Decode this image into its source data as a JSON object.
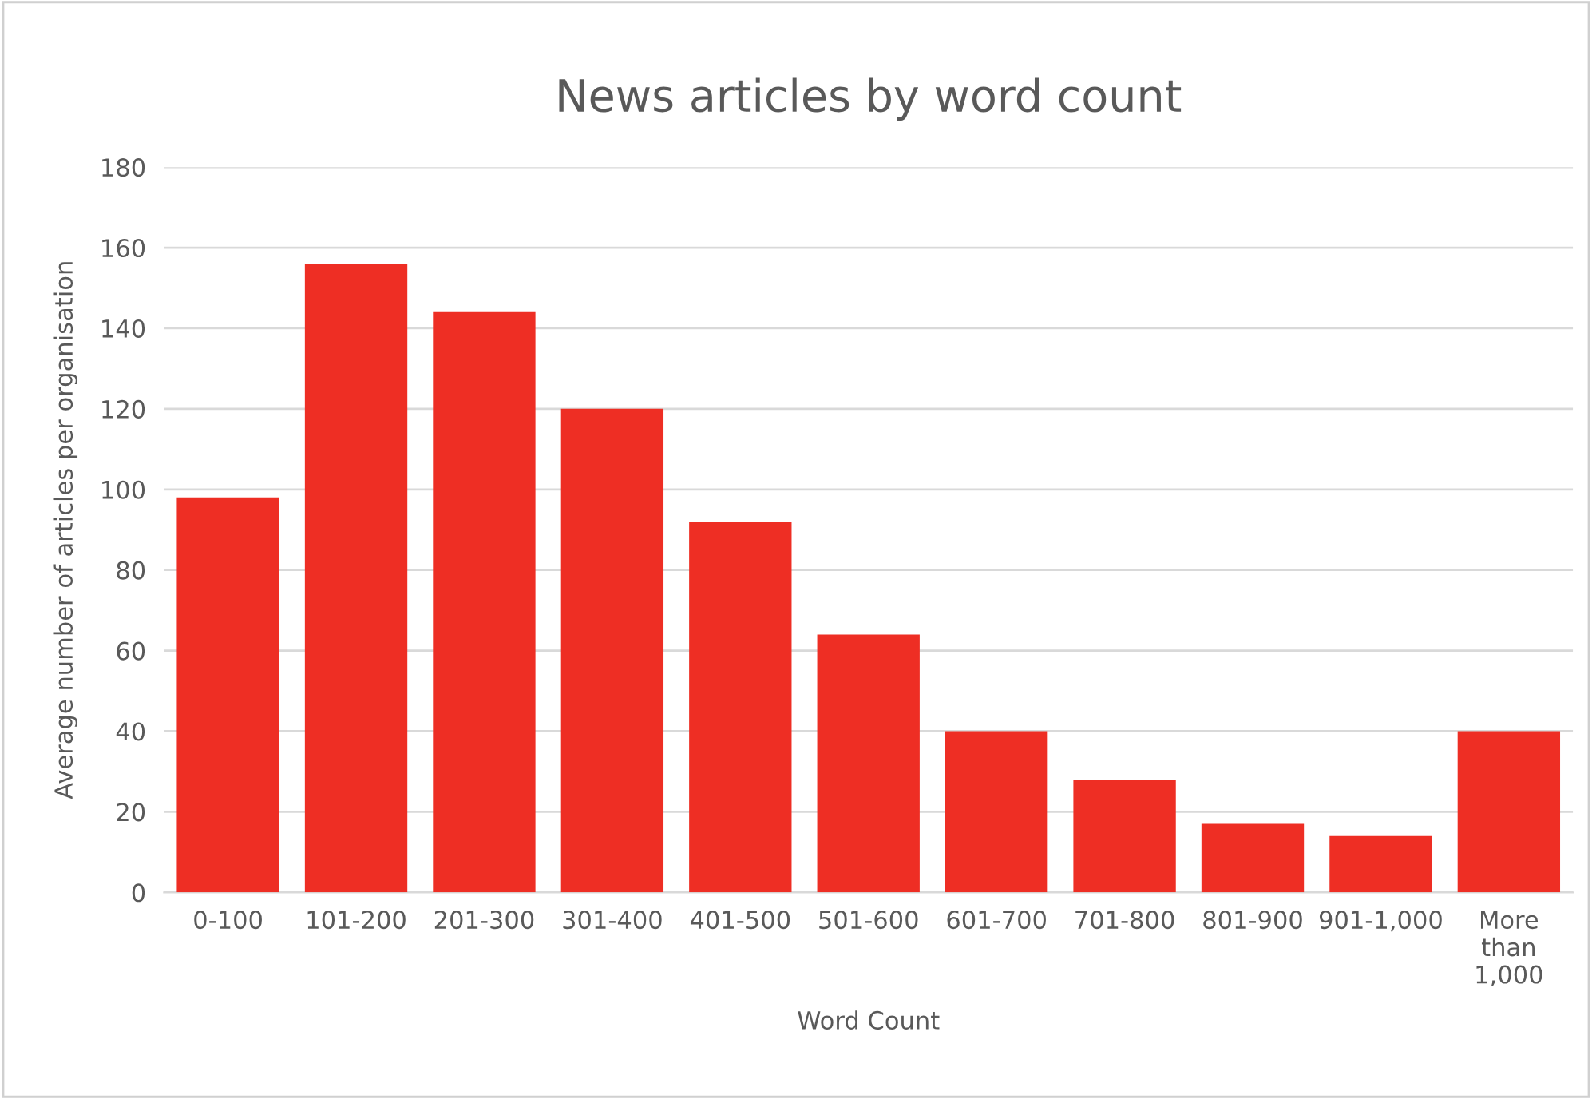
{
  "chart_data": {
    "type": "bar",
    "title": "News articles by word count",
    "xlabel": "Word Count",
    "ylabel": "Average number of articles per organisation",
    "categories": [
      "0-100",
      "101-200",
      "201-300",
      "301-400",
      "401-500",
      "501-600",
      "601-700",
      "701-800",
      "801-900",
      "901-1,000",
      "More than 1,000"
    ],
    "values": [
      98,
      156,
      144,
      120,
      92,
      64,
      40,
      28,
      17,
      14,
      40
    ],
    "color": "#ee2e24",
    "ylim": [
      0,
      180
    ],
    "yticks": [
      0,
      20,
      40,
      60,
      80,
      100,
      120,
      140,
      160,
      180
    ],
    "grid": "y",
    "legend": false
  }
}
